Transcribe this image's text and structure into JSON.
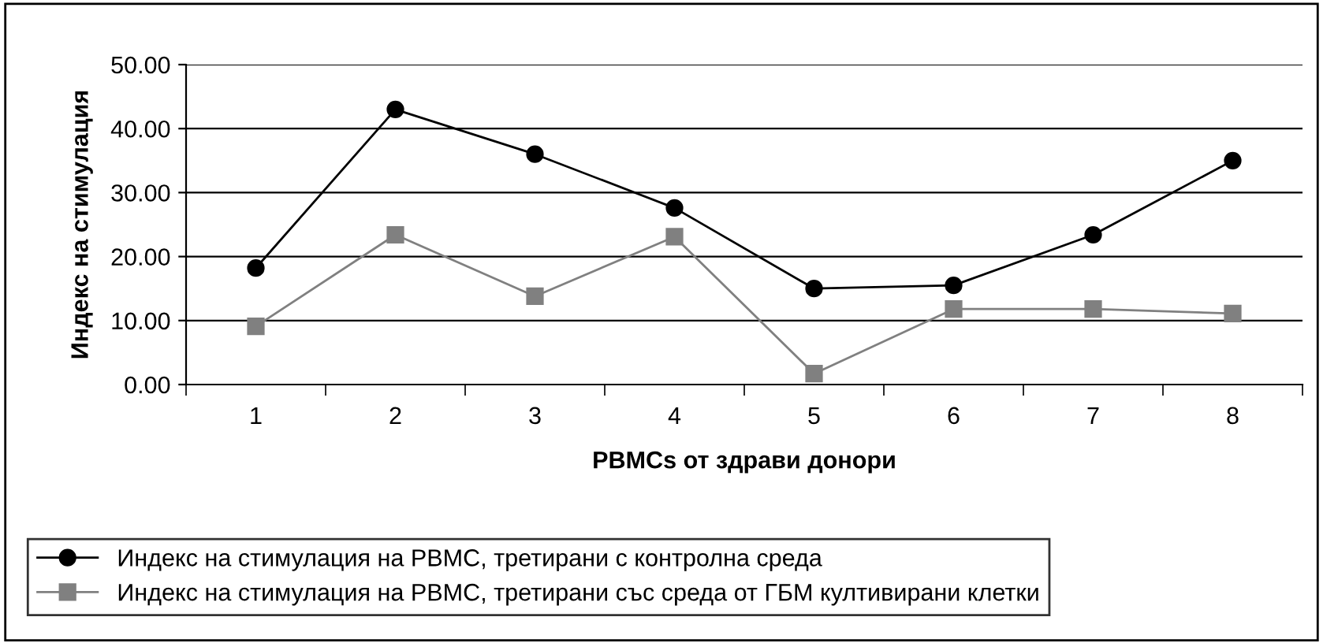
{
  "chart_data": {
    "type": "line",
    "xlabel": "PBMCs от здрави донори",
    "ylabel": "Индекс на стимулация",
    "categories": [
      "1",
      "2",
      "3",
      "4",
      "5",
      "6",
      "7",
      "8"
    ],
    "series": [
      {
        "name": "Индекс на стимулация на PBMC, третирани с контролна среда",
        "color": "#000000",
        "marker": "circle",
        "values": [
          18.2,
          43.0,
          36.0,
          27.6,
          15.0,
          15.5,
          23.4,
          35.0
        ]
      },
      {
        "name": "Индекс на стимулация на PBMC, третирани със среда от ГБМ култивирани клетки",
        "color": "#808080",
        "marker": "square",
        "values": [
          9.1,
          23.4,
          13.8,
          23.1,
          1.7,
          11.8,
          11.8,
          11.1
        ]
      }
    ],
    "ylim": [
      0,
      50
    ],
    "yticks": [
      {
        "value": 0,
        "label": "0.00"
      },
      {
        "value": 10,
        "label": "10.00"
      },
      {
        "value": 20,
        "label": "20.00"
      },
      {
        "value": 30,
        "label": "30.00"
      },
      {
        "value": 40,
        "label": "40.00"
      },
      {
        "value": 50,
        "label": "50.00"
      }
    ],
    "grid": "y",
    "legend": "bottom",
    "line_style": "solid"
  }
}
